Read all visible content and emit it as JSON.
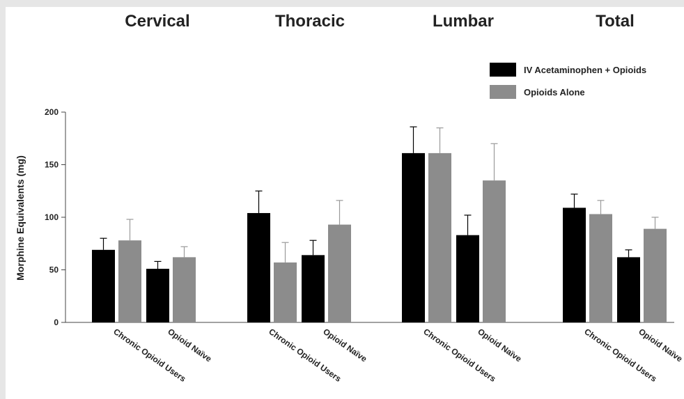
{
  "chart_data": {
    "type": "bar",
    "ylabel": "Morphine Equivalents (mg)",
    "ylim": [
      0,
      200
    ],
    "yticks": [
      0,
      50,
      100,
      150,
      200
    ],
    "categories": [
      "Chronic Opioid Users",
      "Opioid Naïve"
    ],
    "legend_position": "top-right",
    "series": [
      {
        "name": "IV Acetaminophen + Opioids",
        "color": "#000000"
      },
      {
        "name": "Opioids Alone",
        "color": "#8c8c8c"
      }
    ],
    "panels": [
      {
        "title": "Cervical",
        "values": [
          [
            69,
            78
          ],
          [
            51,
            62
          ]
        ],
        "errors": [
          [
            11,
            20
          ],
          [
            7,
            10
          ]
        ]
      },
      {
        "title": "Thoracic",
        "values": [
          [
            104,
            57
          ],
          [
            64,
            93
          ]
        ],
        "errors": [
          [
            21,
            19
          ],
          [
            14,
            23
          ]
        ]
      },
      {
        "title": "Lumbar",
        "values": [
          [
            161,
            161
          ],
          [
            83,
            135
          ]
        ],
        "errors": [
          [
            25,
            24
          ],
          [
            19,
            35
          ]
        ]
      },
      {
        "title": "Total",
        "values": [
          [
            109,
            103
          ],
          [
            62,
            89
          ]
        ],
        "errors": [
          [
            13,
            13
          ],
          [
            7,
            11
          ]
        ]
      }
    ]
  }
}
